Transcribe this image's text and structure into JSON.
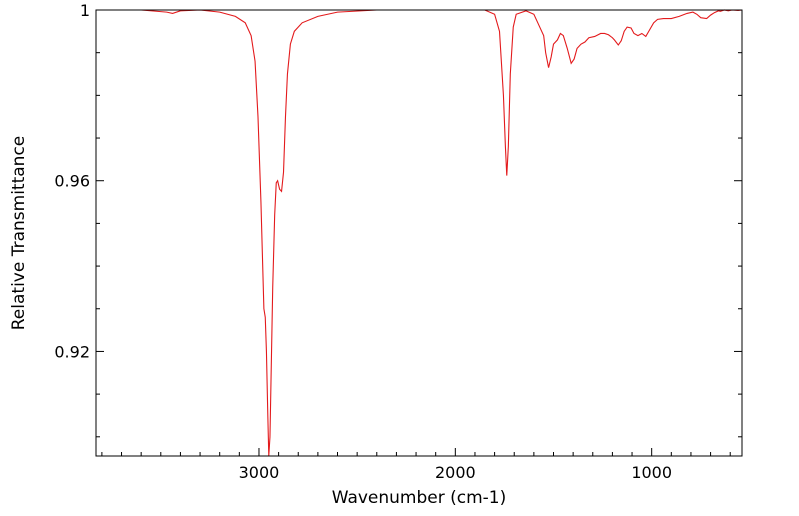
{
  "chart_data": {
    "type": "line",
    "title": "",
    "xlabel": "Wavenumber (cm-1)",
    "ylabel": "Relative Transmittance",
    "xlim": [
      3830,
      540
    ],
    "ylim": [
      0.8955,
      1.0
    ],
    "x_reversed": true,
    "x_ticks": [
      3000,
      2000,
      1000
    ],
    "x_tick_labels": [
      "3000",
      "2000",
      "1000"
    ],
    "y_ticks": [
      1.0,
      0.96,
      0.92
    ],
    "y_tick_labels": [
      "1",
      "0.96",
      "0.92"
    ],
    "grid": false,
    "line_color": "#e31a1c",
    "series": [
      {
        "points": [
          [
            3830,
            1.0
          ],
          [
            3600,
            1.0
          ],
          [
            3470,
            0.9995
          ],
          [
            3440,
            0.9992
          ],
          [
            3400,
            0.9998
          ],
          [
            3300,
            1.0
          ],
          [
            3200,
            0.9995
          ],
          [
            3120,
            0.9985
          ],
          [
            3070,
            0.997
          ],
          [
            3040,
            0.994
          ],
          [
            3020,
            0.988
          ],
          [
            3005,
            0.975
          ],
          [
            2990,
            0.955
          ],
          [
            2975,
            0.93
          ],
          [
            2968,
            0.928
          ],
          [
            2962,
            0.92
          ],
          [
            2955,
            0.905
          ],
          [
            2950,
            0.8955
          ],
          [
            2944,
            0.9
          ],
          [
            2938,
            0.915
          ],
          [
            2930,
            0.935
          ],
          [
            2920,
            0.952
          ],
          [
            2912,
            0.9595
          ],
          [
            2905,
            0.96
          ],
          [
            2895,
            0.958
          ],
          [
            2885,
            0.9575
          ],
          [
            2875,
            0.962
          ],
          [
            2865,
            0.975
          ],
          [
            2855,
            0.985
          ],
          [
            2840,
            0.992
          ],
          [
            2820,
            0.995
          ],
          [
            2780,
            0.997
          ],
          [
            2700,
            0.9985
          ],
          [
            2600,
            0.9995
          ],
          [
            2400,
            1.0
          ],
          [
            2000,
            1.0
          ],
          [
            1850,
            1.0
          ],
          [
            1800,
            0.999
          ],
          [
            1775,
            0.995
          ],
          [
            1755,
            0.98
          ],
          [
            1745,
            0.968
          ],
          [
            1738,
            0.9612
          ],
          [
            1730,
            0.968
          ],
          [
            1720,
            0.985
          ],
          [
            1705,
            0.996
          ],
          [
            1690,
            0.999
          ],
          [
            1640,
            0.9998
          ],
          [
            1600,
            0.999
          ],
          [
            1580,
            0.997
          ],
          [
            1550,
            0.994
          ],
          [
            1540,
            0.99
          ],
          [
            1525,
            0.9865
          ],
          [
            1512,
            0.989
          ],
          [
            1500,
            0.992
          ],
          [
            1480,
            0.993
          ],
          [
            1465,
            0.9945
          ],
          [
            1450,
            0.994
          ],
          [
            1430,
            0.991
          ],
          [
            1410,
            0.9875
          ],
          [
            1395,
            0.9885
          ],
          [
            1380,
            0.991
          ],
          [
            1360,
            0.992
          ],
          [
            1340,
            0.9925
          ],
          [
            1320,
            0.9935
          ],
          [
            1290,
            0.9938
          ],
          [
            1260,
            0.9945
          ],
          [
            1240,
            0.9945
          ],
          [
            1220,
            0.9942
          ],
          [
            1200,
            0.9935
          ],
          [
            1190,
            0.993
          ],
          [
            1170,
            0.9918
          ],
          [
            1155,
            0.9928
          ],
          [
            1140,
            0.995
          ],
          [
            1125,
            0.996
          ],
          [
            1105,
            0.9958
          ],
          [
            1090,
            0.9945
          ],
          [
            1070,
            0.994
          ],
          [
            1050,
            0.9945
          ],
          [
            1030,
            0.9938
          ],
          [
            1015,
            0.995
          ],
          [
            990,
            0.997
          ],
          [
            970,
            0.9978
          ],
          [
            940,
            0.998
          ],
          [
            900,
            0.998
          ],
          [
            860,
            0.9985
          ],
          [
            820,
            0.9992
          ],
          [
            790,
            0.9995
          ],
          [
            770,
            0.999
          ],
          [
            750,
            0.9982
          ],
          [
            720,
            0.998
          ],
          [
            700,
            0.9988
          ],
          [
            680,
            0.9994
          ],
          [
            660,
            0.9998
          ],
          [
            650,
            0.9997
          ],
          [
            630,
            1.0
          ],
          [
            610,
            0.9998
          ],
          [
            590,
            1.0
          ],
          [
            560,
            0.9999
          ],
          [
            540,
            1.0
          ]
        ]
      }
    ]
  }
}
